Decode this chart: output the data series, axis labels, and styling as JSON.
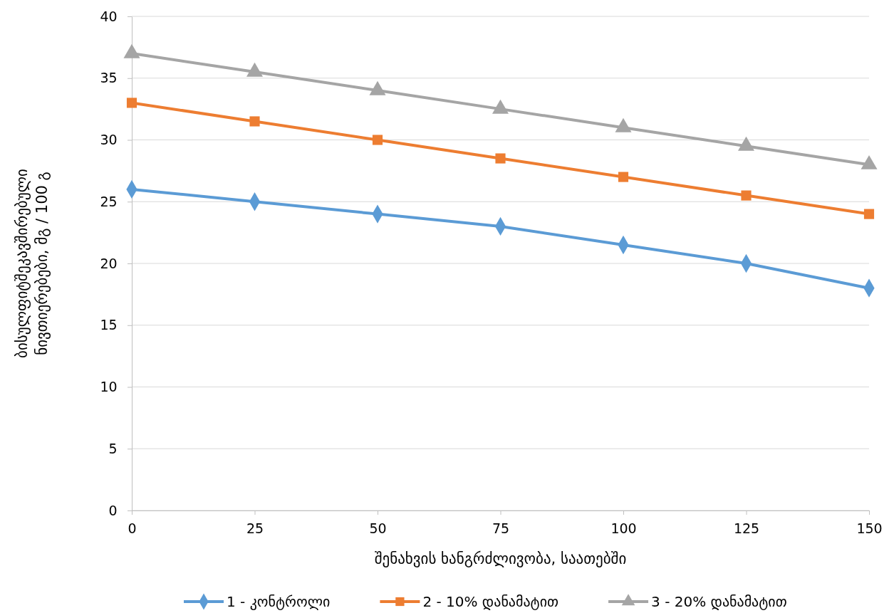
{
  "chart_data": {
    "type": "line",
    "xlabel": "შენახვის ხანგრძლივობა, საათებში",
    "ylabel": "ბისულფიტშეკავშირებული\nნივთიერებები, მგ / 100 გ",
    "x": [
      0,
      25,
      50,
      75,
      100,
      125,
      150
    ],
    "xlim": [
      0,
      150
    ],
    "xticks": [
      0,
      25,
      50,
      75,
      100,
      125,
      150
    ],
    "ylim": [
      0,
      40
    ],
    "yticks": [
      0,
      5,
      10,
      15,
      20,
      25,
      30,
      35,
      40
    ],
    "grid": "y",
    "legend": "bottom",
    "line_style": "solid",
    "series": [
      {
        "name": "1 - კონტროლი",
        "color": "#5b9bd5",
        "marker": "diamond",
        "values": [
          26,
          25,
          24,
          23,
          21.5,
          20,
          18
        ]
      },
      {
        "name": "2 - 10% დანამატით",
        "color": "#ed7d31",
        "marker": "square",
        "values": [
          33,
          31.5,
          30,
          28.5,
          27,
          25.5,
          24
        ]
      },
      {
        "name": "3 - 20% დანამატით",
        "color": "#a5a5a5",
        "marker": "triangle",
        "values": [
          37,
          35.5,
          34,
          32.5,
          31,
          29.5,
          28
        ]
      }
    ]
  }
}
